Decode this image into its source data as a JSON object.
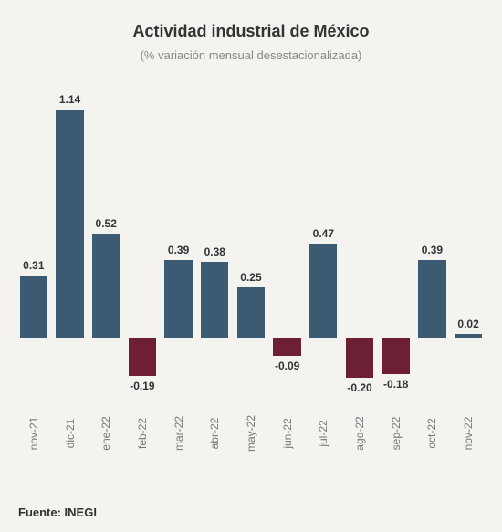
{
  "title": "Actividad industrial de México",
  "subtitle": "(% variación mensual desestacionalizada)",
  "source": "Fuente: INEGI",
  "chart": {
    "type": "bar",
    "ylim": [
      -0.3,
      1.25
    ],
    "background_color": "#f5f3f0",
    "positive_color": "#3d5a73",
    "negative_color": "#6d1f33",
    "title_fontsize": 18,
    "subtitle_fontsize": 13,
    "label_fontsize": 12,
    "xlabel_fontsize": 12,
    "source_fontsize": 13,
    "bar_width": 0.9,
    "categories": [
      "nov-21",
      "dic-21",
      "ene-22",
      "feb-22",
      "mar-22",
      "abr-22",
      "may-22",
      "jun-22",
      "jul-22",
      "ago-22",
      "sep-22",
      "oct-22",
      "nov-22"
    ],
    "values": [
      0.31,
      1.14,
      0.52,
      -0.19,
      0.39,
      0.38,
      0.25,
      -0.09,
      0.47,
      -0.2,
      -0.18,
      0.39,
      0.02
    ]
  }
}
